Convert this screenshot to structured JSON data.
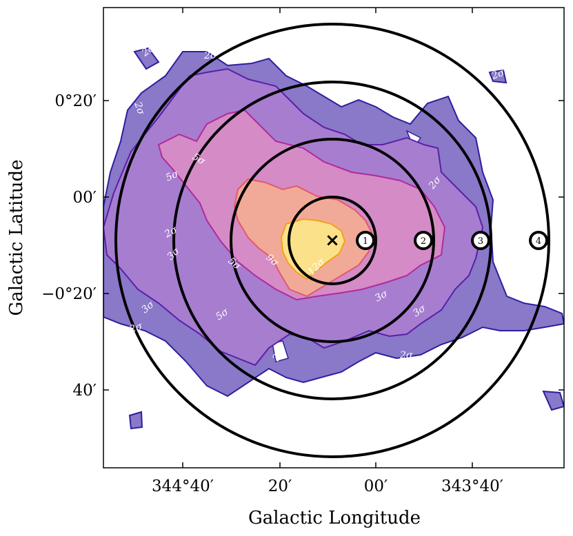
{
  "chart_data": {
    "type": "contour",
    "xlabel": "Galactic Longitude",
    "ylabel": "Galactic Latitude",
    "x_ticks": [
      "344°40′",
      "20′",
      "00′",
      "343°40′"
    ],
    "y_ticks": [
      "0°20′",
      "00′",
      "−0°20′",
      "40′"
    ],
    "contour_levels": [
      {
        "label": "2σ",
        "color": "#2b1f9e",
        "fill": "#8a78c8"
      },
      {
        "label": "3σ",
        "color": "#5a1fa8",
        "fill": "#a77dd0"
      },
      {
        "label": "5σ",
        "color": "#b02a9a",
        "fill": "#d48bc6"
      },
      {
        "label": "9σ",
        "color": "#e05a6a",
        "fill": "#f2aa98"
      },
      {
        "label": "12σ",
        "color": "#f5a01a",
        "fill": "#fbe28a"
      }
    ],
    "contour_annotations": [
      "2σ",
      "2σ",
      "2σ",
      "2σ",
      "2σ",
      "2σ",
      "2σ",
      "2σ",
      "2σ",
      "2σ",
      "3σ",
      "3σ",
      "3σ",
      "3σ",
      "3σ",
      "5σ",
      "5σ",
      "5σ",
      "5σ",
      "9σ",
      "12σ"
    ],
    "center_marker": "×",
    "region_markers": [
      "1",
      "2",
      "3",
      "4"
    ]
  }
}
